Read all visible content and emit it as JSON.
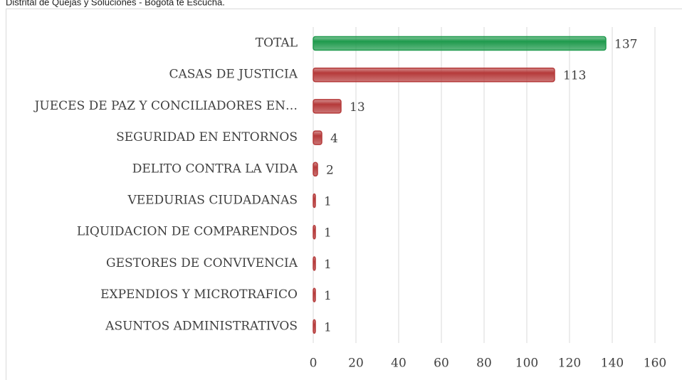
{
  "note": "Distrital de Quejas y Soluciones - Bogota te Escucha.",
  "chart_data": {
    "type": "hbar",
    "categories": [
      "TOTAL",
      "CASAS DE JUSTICIA",
      "JUECES DE PAZ Y CONCILIADORES EN…",
      "SEGURIDAD EN ENTORNOS",
      "DELITO CONTRA LA VIDA",
      "VEEDURIAS CIUDADANAS",
      "LIQUIDACION DE COMPARENDOS",
      "GESTORES DE CONVIVENCIA",
      "EXPENDIOS Y MICROTRAFICO",
      "ASUNTOS ADMINISTRATIVOS"
    ],
    "values": [
      137,
      113,
      13,
      4,
      2,
      1,
      1,
      1,
      1,
      1
    ],
    "colors": [
      "#1e9a4c",
      "#b53a3a",
      "#b53a3a",
      "#b53a3a",
      "#b53a3a",
      "#b53a3a",
      "#b53a3a",
      "#b53a3a",
      "#b53a3a",
      "#b53a3a"
    ],
    "xlim": [
      0,
      160
    ],
    "xticks": [
      0,
      20,
      40,
      60,
      80,
      100,
      120,
      140,
      160
    ],
    "grid": true
  }
}
